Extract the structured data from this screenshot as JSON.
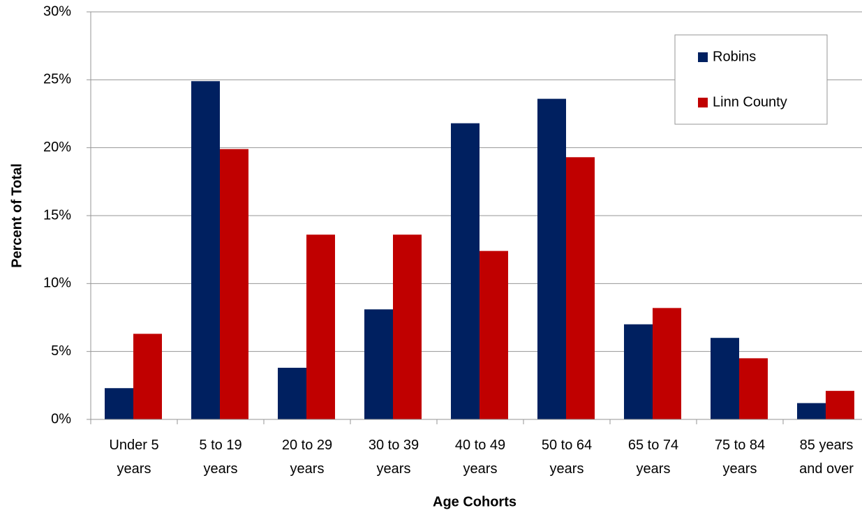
{
  "chart_data": {
    "type": "bar",
    "y_label": "Percent of Total",
    "x_label": "Age Cohorts",
    "categories": [
      "Under 5 years",
      "5 to 19 years",
      "20 to 29 years",
      "30 to 39 years",
      "40 to 49 years",
      "50 to 64 years",
      "65 to 74 years",
      "75 to 84 years",
      "85 years and over"
    ],
    "series": [
      {
        "name": "Robins",
        "color": "#002060",
        "values": [
          2.3,
          24.9,
          3.8,
          8.1,
          21.8,
          23.6,
          7.0,
          6.0,
          1.2
        ]
      },
      {
        "name": "Linn County",
        "color": "#c00000",
        "values": [
          6.3,
          19.9,
          13.6,
          13.6,
          12.4,
          19.3,
          8.2,
          4.5,
          2.1
        ]
      }
    ],
    "ylim": [
      0,
      30
    ],
    "yticks": [
      {
        "value": 0,
        "label": "0%"
      },
      {
        "value": 5,
        "label": "5%"
      },
      {
        "value": 10,
        "label": "10%"
      },
      {
        "value": 15,
        "label": "15%"
      },
      {
        "value": 20,
        "label": "20%"
      },
      {
        "value": 25,
        "label": "25%"
      },
      {
        "value": 30,
        "label": "30%"
      }
    ],
    "grid": true,
    "legend": "top-right"
  }
}
